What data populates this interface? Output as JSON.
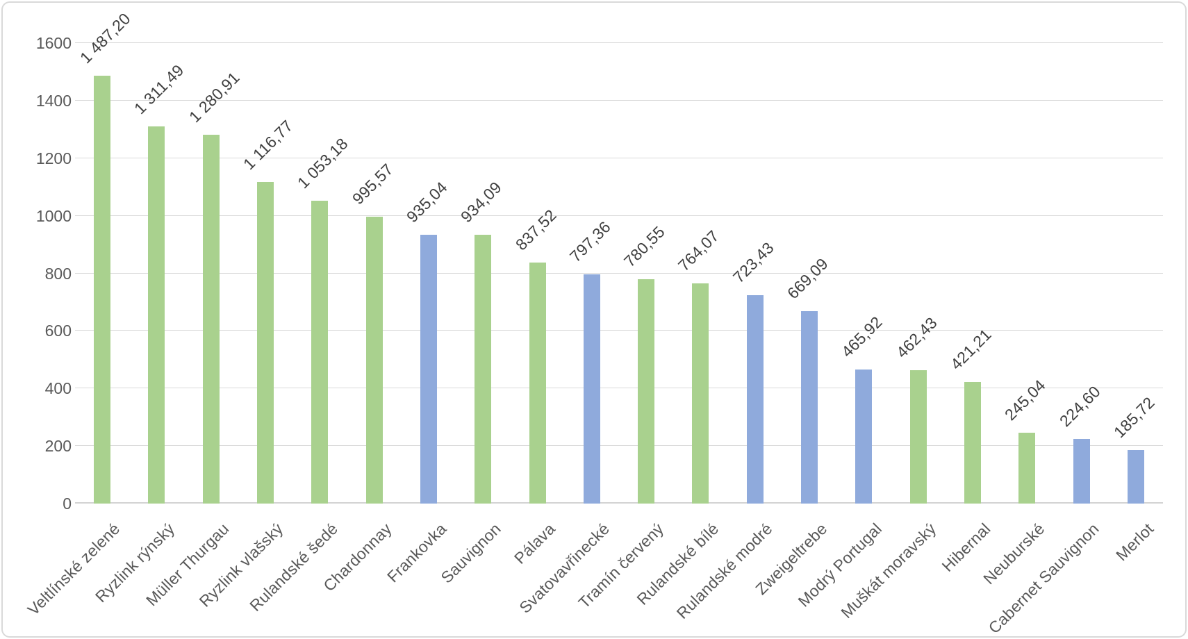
{
  "chart_data": {
    "type": "bar",
    "title": "",
    "xlabel": "",
    "ylabel": "",
    "categories": [
      "Veltlínské zelené",
      "Ryzlink rýnský",
      "Müller Thurgau",
      "Ryzlink vlašský",
      "Rulandské šedé",
      "Chardonnay",
      "Frankovka",
      "Sauvignon",
      "Pálava",
      "Svatovavřinecké",
      "Tramín červený",
      "Rulandské bílé",
      "Rulandské modré",
      "Zweigeltrebe",
      "Modrý Portugal",
      "Muškát moravský",
      "Hibernal",
      "Neuburské",
      "Cabernet Sauvignon",
      "Merlot"
    ],
    "values": [
      1487.2,
      1311.49,
      1280.91,
      1116.77,
      1053.18,
      995.57,
      935.04,
      934.09,
      837.52,
      797.36,
      780.55,
      764.07,
      723.43,
      669.09,
      465.92,
      462.43,
      421.21,
      245.04,
      224.6,
      185.72
    ],
    "value_labels": [
      "1 487,20",
      "1 311,49",
      "1 280,91",
      "1 116,77",
      "1 053,18",
      "995,57",
      "935,04",
      "934,09",
      "837,52",
      "797,36",
      "780,55",
      "764,07",
      "723,43",
      "669,09",
      "465,92",
      "462,43",
      "421,21",
      "245,04",
      "224,60",
      "185,72"
    ],
    "point_colors": [
      "green",
      "green",
      "green",
      "green",
      "green",
      "green",
      "blue",
      "green",
      "green",
      "blue",
      "green",
      "green",
      "blue",
      "blue",
      "blue",
      "green",
      "green",
      "green",
      "blue",
      "blue"
    ],
    "colors": {
      "green": "#A9D18E",
      "blue": "#8FAADC"
    },
    "ylim": [
      0,
      1600
    ],
    "yticks": [
      0,
      200,
      400,
      600,
      800,
      1000,
      1200,
      1400,
      1600
    ],
    "ytick_labels": [
      "0",
      "200",
      "400",
      "600",
      "800",
      "1000",
      "1200",
      "1400",
      "1600"
    ],
    "grid": true,
    "legend": "none",
    "gridline_color": "#D9D9D9",
    "axis_text_color": "#595959",
    "value_label_color": "#404040",
    "category_label_rotation_deg": -45,
    "value_label_rotation_deg": -45
  }
}
